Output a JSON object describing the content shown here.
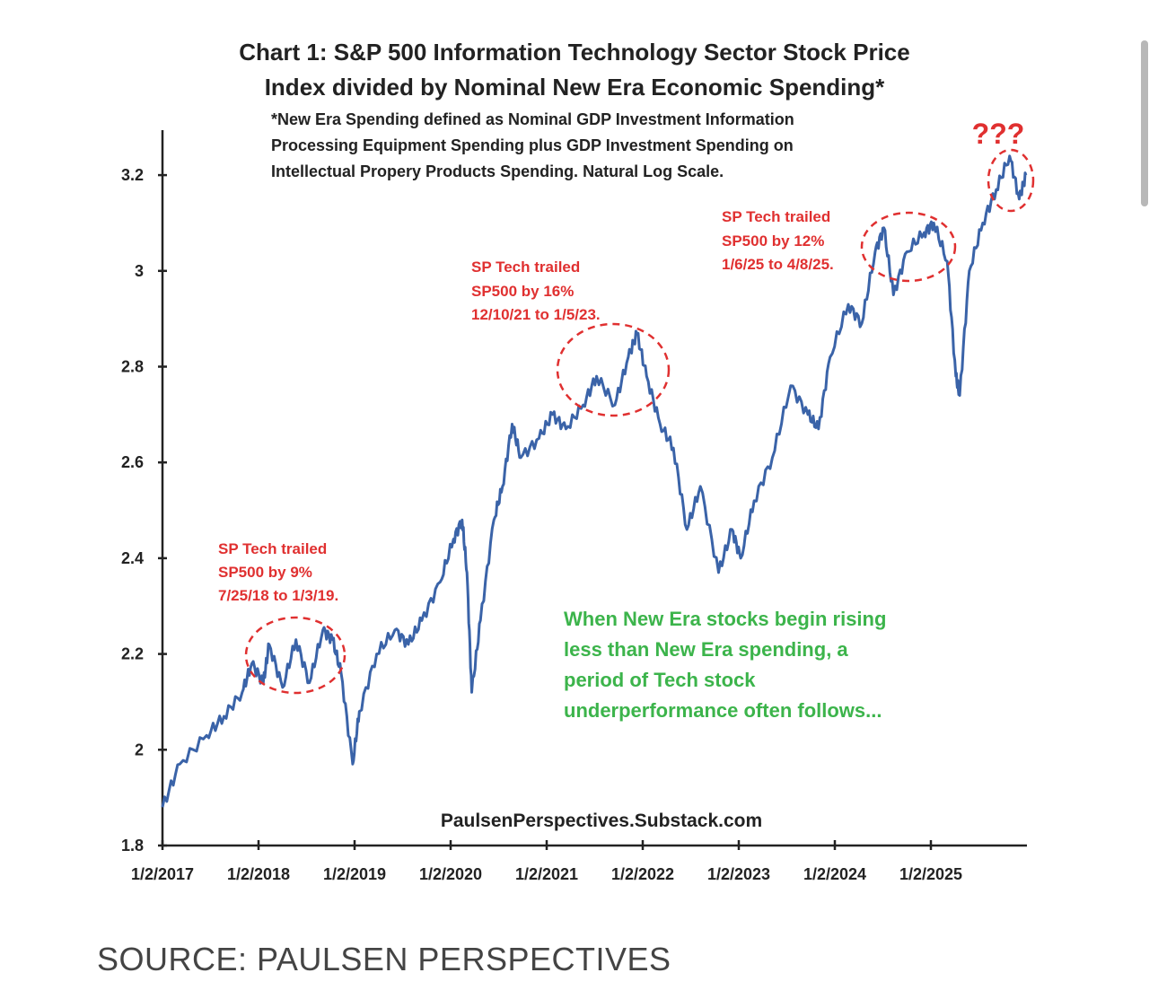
{
  "chart_data": {
    "type": "line",
    "title": [
      "Chart 1: S&P 500 Information Technology Sector Stock Price",
      "Index divided by Nominal New Era Economic Spending*"
    ],
    "note": [
      "*New Era Spending defined as Nominal GDP Investment Information",
      "Processing Equipment Spending plus GDP Investment Spending on",
      "Intellectual Propery Products Spending.  Natural Log Scale."
    ],
    "xlabel": "",
    "ylabel": "",
    "xlim": [
      2017.0,
      2026.0
    ],
    "ylim": [
      1.8,
      3.3
    ],
    "x_ticks": [
      {
        "value": 2017,
        "label": "1/2/2017"
      },
      {
        "value": 2018,
        "label": "1/2/2018"
      },
      {
        "value": 2019,
        "label": "1/2/2019"
      },
      {
        "value": 2020,
        "label": "1/2/2020"
      },
      {
        "value": 2021,
        "label": "1/2/2021"
      },
      {
        "value": 2022,
        "label": "1/2/2022"
      },
      {
        "value": 2023,
        "label": "1/2/2023"
      },
      {
        "value": 2024,
        "label": "1/2/2024"
      },
      {
        "value": 2025,
        "label": "1/2/2025"
      }
    ],
    "y_ticks": [
      {
        "value": 1.8,
        "label": "1.8"
      },
      {
        "value": 2.0,
        "label": "2"
      },
      {
        "value": 2.2,
        "label": "2.2"
      },
      {
        "value": 2.4,
        "label": "2.4"
      },
      {
        "value": 2.6,
        "label": "2.6"
      },
      {
        "value": 2.8,
        "label": "2.8"
      },
      {
        "value": 3.0,
        "label": "3"
      },
      {
        "value": 3.2,
        "label": "3.2"
      }
    ],
    "grid": false,
    "series": [
      {
        "name": "Tech index / New Era spending (ln)",
        "color": "#3a63a8",
        "x": [
          2017.0,
          2017.18,
          2017.46,
          2017.64,
          2017.83,
          2017.93,
          2018.05,
          2018.11,
          2018.25,
          2018.39,
          2018.53,
          2018.67,
          2018.77,
          2018.86,
          2018.98,
          2019.05,
          2019.23,
          2019.42,
          2019.56,
          2019.7,
          2019.89,
          2020.03,
          2020.12,
          2020.17,
          2020.22,
          2020.31,
          2020.45,
          2020.54,
          2020.64,
          2020.73,
          2020.92,
          2021.06,
          2021.2,
          2021.38,
          2021.52,
          2021.71,
          2021.85,
          2021.94,
          2022.04,
          2022.18,
          2022.32,
          2022.46,
          2022.6,
          2022.79,
          2022.93,
          2023.02,
          2023.16,
          2023.35,
          2023.54,
          2023.72,
          2023.83,
          2023.95,
          2024.14,
          2024.28,
          2024.42,
          2024.51,
          2024.61,
          2024.75,
          2024.93,
          2025.03,
          2025.17,
          2025.26,
          2025.3,
          2025.4,
          2025.54,
          2025.68,
          2025.82,
          2025.92,
          2025.99
        ],
        "y": [
          1.88,
          1.97,
          2.03,
          2.07,
          2.12,
          2.18,
          2.14,
          2.22,
          2.13,
          2.23,
          2.14,
          2.25,
          2.23,
          2.16,
          1.97,
          2.08,
          2.2,
          2.25,
          2.22,
          2.27,
          2.35,
          2.44,
          2.48,
          2.37,
          2.12,
          2.27,
          2.48,
          2.55,
          2.68,
          2.61,
          2.65,
          2.7,
          2.67,
          2.72,
          2.78,
          2.72,
          2.82,
          2.87,
          2.78,
          2.68,
          2.63,
          2.46,
          2.55,
          2.37,
          2.46,
          2.4,
          2.52,
          2.61,
          2.76,
          2.7,
          2.67,
          2.82,
          2.93,
          2.89,
          3.04,
          3.09,
          2.95,
          3.04,
          3.08,
          3.1,
          3.02,
          2.78,
          2.74,
          3.0,
          3.1,
          3.17,
          3.24,
          3.15,
          3.2
        ]
      }
    ],
    "annotations": [
      {
        "lines": [
          "SP Tech trailed",
          "SP500 by  9%",
          "7/25/18 to 1/3/19."
        ],
        "color": "#e03030",
        "highlight": [
          2018.56,
          2018.99
        ]
      },
      {
        "lines": [
          "SP Tech trailed",
          "SP500 by  16%",
          "12/10/21 to 1/5/23."
        ],
        "color": "#e03030",
        "highlight": [
          2021.94,
          2023.01
        ]
      },
      {
        "lines": [
          "SP Tech trailed",
          "SP500 by  12%",
          "1/6/25 to 4/8/25."
        ],
        "color": "#e03030",
        "highlight": [
          2025.01,
          2025.27
        ]
      },
      {
        "lines": [
          "???"
        ],
        "color": "#e03030"
      },
      {
        "lines": [
          "When New Era stocks begin rising",
          "less than New Era spending, a",
          "period of Tech stock",
          "underperformance often follows..."
        ],
        "color": "#3cb44b"
      }
    ],
    "watermark": "PaulsenPerspectives.Substack.com"
  },
  "source": "SOURCE: PAULSEN PERSPECTIVES"
}
